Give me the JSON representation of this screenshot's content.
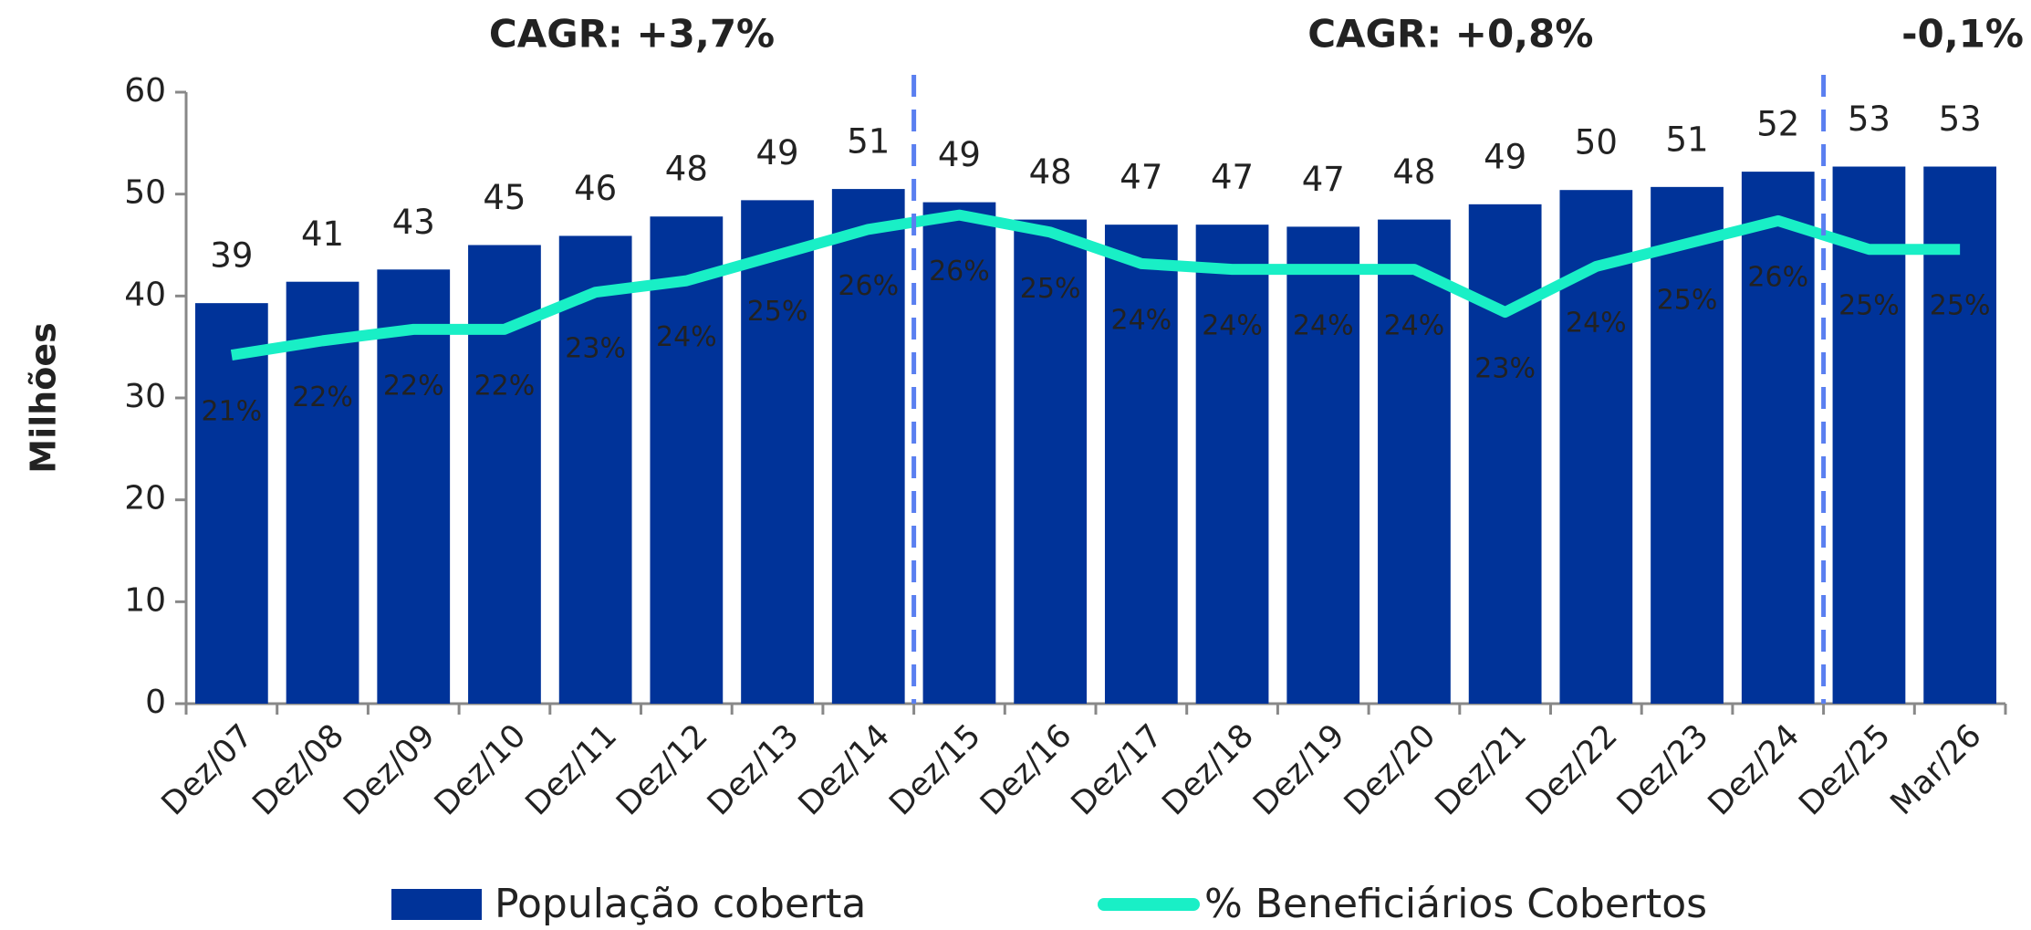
{
  "chart_data": {
    "type": "bar",
    "y_label": "Milhões",
    "categories": [
      "Dez/07",
      "Dez/08",
      "Dez/09",
      "Dez/10",
      "Dez/11",
      "Dez/12",
      "Dez/13",
      "Dez/14",
      "Dez/15",
      "Dez/16",
      "Dez/17",
      "Dez/18",
      "Dez/19",
      "Dez/20",
      "Dez/21",
      "Dez/22",
      "Dez/23",
      "Dez/24",
      "Dez/25",
      "Mar/26"
    ],
    "series": [
      {
        "name": "População coberta",
        "type": "bar",
        "color": "#003399",
        "values": [
          39.3,
          41.4,
          42.6,
          45.0,
          45.9,
          47.8,
          49.4,
          50.5,
          49.2,
          47.5,
          47.0,
          47.0,
          46.8,
          47.5,
          49.0,
          50.4,
          50.7,
          52.2,
          52.7,
          52.7
        ],
        "value_labels": [
          "39",
          "41",
          "43",
          "45",
          "46",
          "48",
          "49",
          "51",
          "49",
          "48",
          "47",
          "47",
          "47",
          "48",
          "49",
          "50",
          "51",
          "52",
          "53",
          "53"
        ]
      },
      {
        "name": "% Beneficiários Cobertos",
        "type": "line",
        "color": "#19efc6",
        "axis": "y2",
        "values": [
          21.1,
          21.6,
          22.0,
          22.0,
          23.3,
          23.7,
          24.6,
          25.5,
          26.0,
          25.4,
          24.3,
          24.1,
          24.1,
          24.1,
          22.6,
          24.2,
          25.0,
          25.8,
          24.8,
          24.8
        ],
        "value_labels": [
          "21%",
          "22%",
          "22%",
          "22%",
          "23%",
          "24%",
          "25%",
          "26%",
          "26%",
          "25%",
          "24%",
          "24%",
          "24%",
          "24%",
          "23%",
          "24%",
          "25%",
          "26%",
          "25%",
          "25%"
        ]
      }
    ],
    "ylim": [
      0,
      60
    ],
    "yticks": [
      0,
      10,
      20,
      30,
      40,
      50,
      60
    ],
    "y2lim": [
      8.9,
      30.3
    ],
    "annotations": [
      {
        "text": "CAGR: +3,7%",
        "from": "Dez/07",
        "to": "Dez/14"
      },
      {
        "text": "CAGR: +0,8%",
        "from": "Dez/15",
        "to": "Dez/24"
      },
      {
        "text": "-0,1%",
        "from": "Dez/25",
        "to": "Mar/26"
      }
    ],
    "annotation_color": "#5a7ff0",
    "legend": "bottom"
  }
}
